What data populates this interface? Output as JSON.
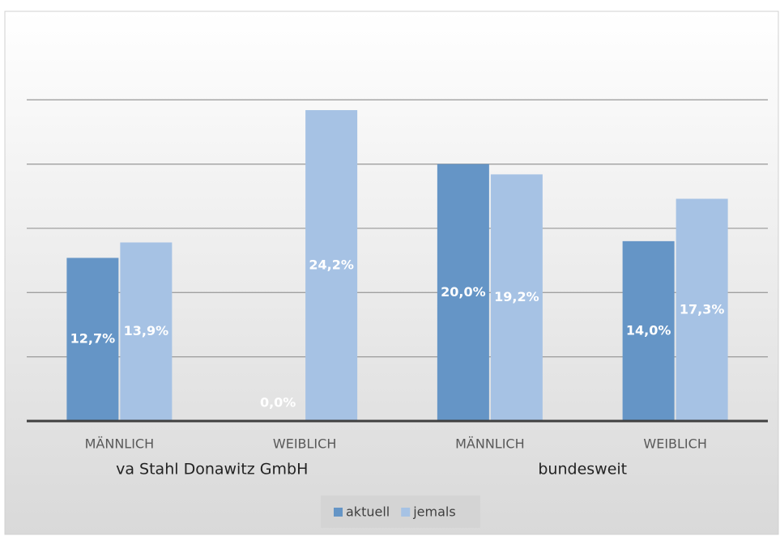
{
  "chart_data": {
    "type": "bar",
    "categories": [
      "MÄNNLICH",
      "WEIBLICH",
      "MÄNNLICH",
      "WEIBLICH"
    ],
    "group_labels": [
      "va Stahl Donawitz GmbH",
      "bundesweit"
    ],
    "series": [
      {
        "name": "aktuell",
        "color": "#6595c6",
        "values": [
          12.7,
          0.0,
          20.0,
          14.0
        ],
        "value_labels": [
          "12,7%",
          "0,0%",
          "20,0%",
          "14,0%"
        ]
      },
      {
        "name": "jemals",
        "color": "#a6c2e4",
        "values": [
          13.9,
          24.2,
          19.2,
          17.3
        ],
        "value_labels": [
          "13,9%",
          "24,2%",
          "19,2%",
          "17,3%"
        ]
      }
    ],
    "ylim": [
      0,
      30
    ],
    "yticks": [
      0,
      5,
      10,
      15,
      20,
      25
    ],
    "grid": true,
    "legend": "bottom"
  }
}
